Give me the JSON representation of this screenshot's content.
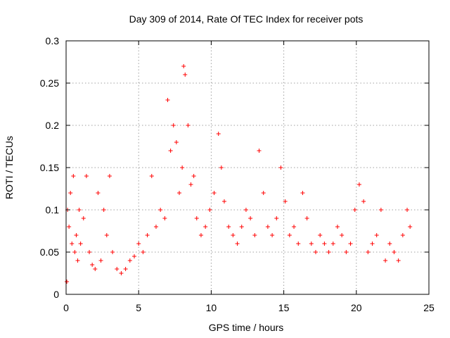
{
  "chart_data": {
    "type": "scatter",
    "title": "Day 309 of 2014, Rate Of TEC Index for receiver pots",
    "xlabel": "GPS time / hours",
    "ylabel": "ROTI / TECUs",
    "xlim": [
      0,
      25
    ],
    "ylim": [
      0,
      0.3
    ],
    "xticks": [
      0,
      5,
      10,
      15,
      20,
      25
    ],
    "xtick_labels": [
      "0",
      "5",
      "10",
      "15",
      "20",
      "25"
    ],
    "yticks": [
      0,
      0.05,
      0.1,
      0.15,
      0.2,
      0.25,
      0.3
    ],
    "ytick_labels": [
      "0",
      "0.05",
      "0.1",
      "0.15",
      "0.2",
      "0.25",
      "0.3"
    ],
    "grid": true,
    "marker": "+",
    "color": "#ff0000",
    "series": [
      {
        "name": "ROTI",
        "x": [
          0.05,
          0.1,
          0.2,
          0.3,
          0.4,
          0.5,
          0.6,
          0.7,
          0.8,
          0.9,
          1.0,
          1.2,
          1.4,
          1.6,
          1.8,
          2.0,
          2.2,
          2.4,
          2.6,
          2.8,
          3.0,
          3.2,
          3.5,
          3.8,
          4.1,
          4.4,
          4.7,
          5.0,
          5.3,
          5.6,
          5.9,
          6.2,
          6.5,
          6.8,
          7.0,
          7.2,
          7.4,
          7.6,
          7.8,
          8.0,
          8.1,
          8.2,
          8.4,
          8.6,
          8.8,
          9.0,
          9.3,
          9.6,
          9.9,
          10.2,
          10.5,
          10.7,
          10.9,
          11.2,
          11.5,
          11.8,
          12.1,
          12.4,
          12.7,
          13.0,
          13.3,
          13.6,
          13.9,
          14.2,
          14.5,
          14.8,
          15.1,
          15.4,
          15.7,
          16.0,
          16.3,
          16.6,
          16.9,
          17.2,
          17.5,
          17.8,
          18.1,
          18.4,
          18.7,
          19.0,
          19.3,
          19.6,
          19.9,
          20.2,
          20.5,
          20.8,
          21.1,
          21.4,
          21.7,
          22.0,
          22.3,
          22.6,
          22.9,
          23.2,
          23.5,
          23.7
        ],
        "y": [
          0.015,
          0.1,
          0.08,
          0.12,
          0.06,
          0.14,
          0.05,
          0.07,
          0.04,
          0.1,
          0.06,
          0.09,
          0.14,
          0.05,
          0.035,
          0.03,
          0.12,
          0.04,
          0.1,
          0.07,
          0.14,
          0.05,
          0.03,
          0.025,
          0.03,
          0.04,
          0.045,
          0.06,
          0.05,
          0.07,
          0.14,
          0.08,
          0.1,
          0.09,
          0.23,
          0.17,
          0.2,
          0.18,
          0.12,
          0.15,
          0.27,
          0.26,
          0.2,
          0.13,
          0.14,
          0.09,
          0.07,
          0.08,
          0.1,
          0.12,
          0.19,
          0.15,
          0.11,
          0.08,
          0.07,
          0.06,
          0.08,
          0.1,
          0.09,
          0.07,
          0.17,
          0.12,
          0.08,
          0.07,
          0.09,
          0.15,
          0.11,
          0.07,
          0.08,
          0.06,
          0.12,
          0.09,
          0.06,
          0.05,
          0.07,
          0.06,
          0.05,
          0.06,
          0.08,
          0.07,
          0.05,
          0.06,
          0.1,
          0.13,
          0.11,
          0.05,
          0.06,
          0.07,
          0.1,
          0.04,
          0.06,
          0.05,
          0.04,
          0.07,
          0.1,
          0.08
        ]
      }
    ]
  }
}
